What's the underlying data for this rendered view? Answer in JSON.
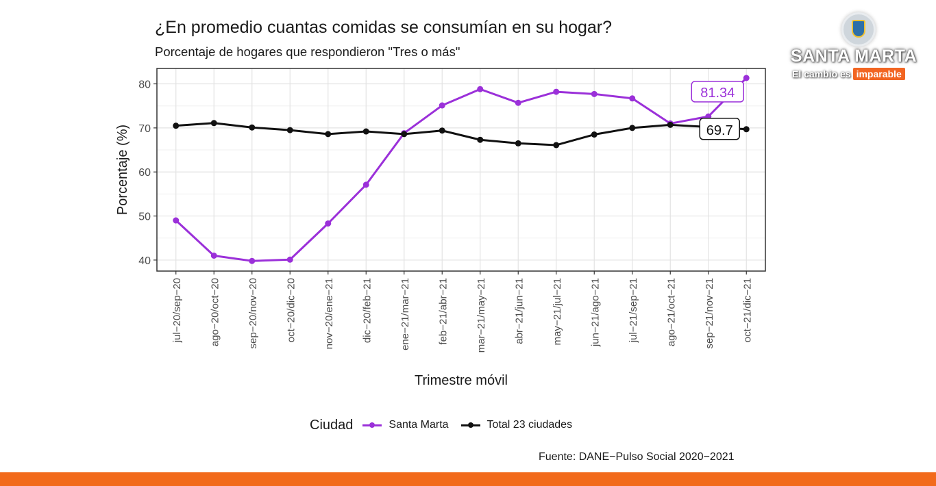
{
  "logo": {
    "title": "SANTA MARTA",
    "tagline_prefix": "El cambio es",
    "tagline_highlight": "imparable",
    "icon": "city-shield-icon"
  },
  "source": "Fuente: DANE−Pulso Social 2020−2021",
  "colors": {
    "santa_marta": "#9b30d9",
    "total": "#111111",
    "bar": "#f26a1b"
  },
  "legend": {
    "title": "Ciudad",
    "items": [
      "Santa Marta",
      "Total 23 ciudades"
    ]
  },
  "chart_data": {
    "type": "line",
    "title": "¿En promedio cuantas comidas se consumían en su hogar?",
    "subtitle": "Porcentaje de hogares que respondieron \"Tres o más\"",
    "xlabel": "Trimestre móvil",
    "ylabel": "Porcentaje (%)",
    "ylim": [
      37.5,
      83.5
    ],
    "yticks": [
      40,
      50,
      60,
      70,
      80
    ],
    "grid": true,
    "legend_position": "bottom",
    "categories": [
      "jul−20/sep−20",
      "ago−20/oct−20",
      "sep−20/nov−20",
      "oct−20/dic−20",
      "nov−20/ene−21",
      "dic−20/feb−21",
      "ene−21/mar−21",
      "feb−21/abr−21",
      "mar−21/may−21",
      "abr−21/jun−21",
      "may−21/jul−21",
      "jun−21/ago−21",
      "jul−21/sep−21",
      "ago−21/oct−21",
      "sep−21/nov−21",
      "oct−21/dic−21"
    ],
    "series": [
      {
        "name": "Santa Marta",
        "color": "#9b30d9",
        "values": [
          49.0,
          41.0,
          39.8,
          40.1,
          48.3,
          57.1,
          68.8,
          75.1,
          78.8,
          75.7,
          78.2,
          77.7,
          76.7,
          71.0,
          72.6,
          81.34
        ],
        "end_label": "81.34"
      },
      {
        "name": "Total 23 ciudades",
        "color": "#111111",
        "values": [
          70.5,
          71.1,
          70.1,
          69.5,
          68.6,
          69.2,
          68.6,
          69.4,
          67.3,
          66.5,
          66.1,
          68.5,
          70.0,
          70.7,
          70.2,
          69.7
        ],
        "end_label": "69.7"
      }
    ]
  }
}
